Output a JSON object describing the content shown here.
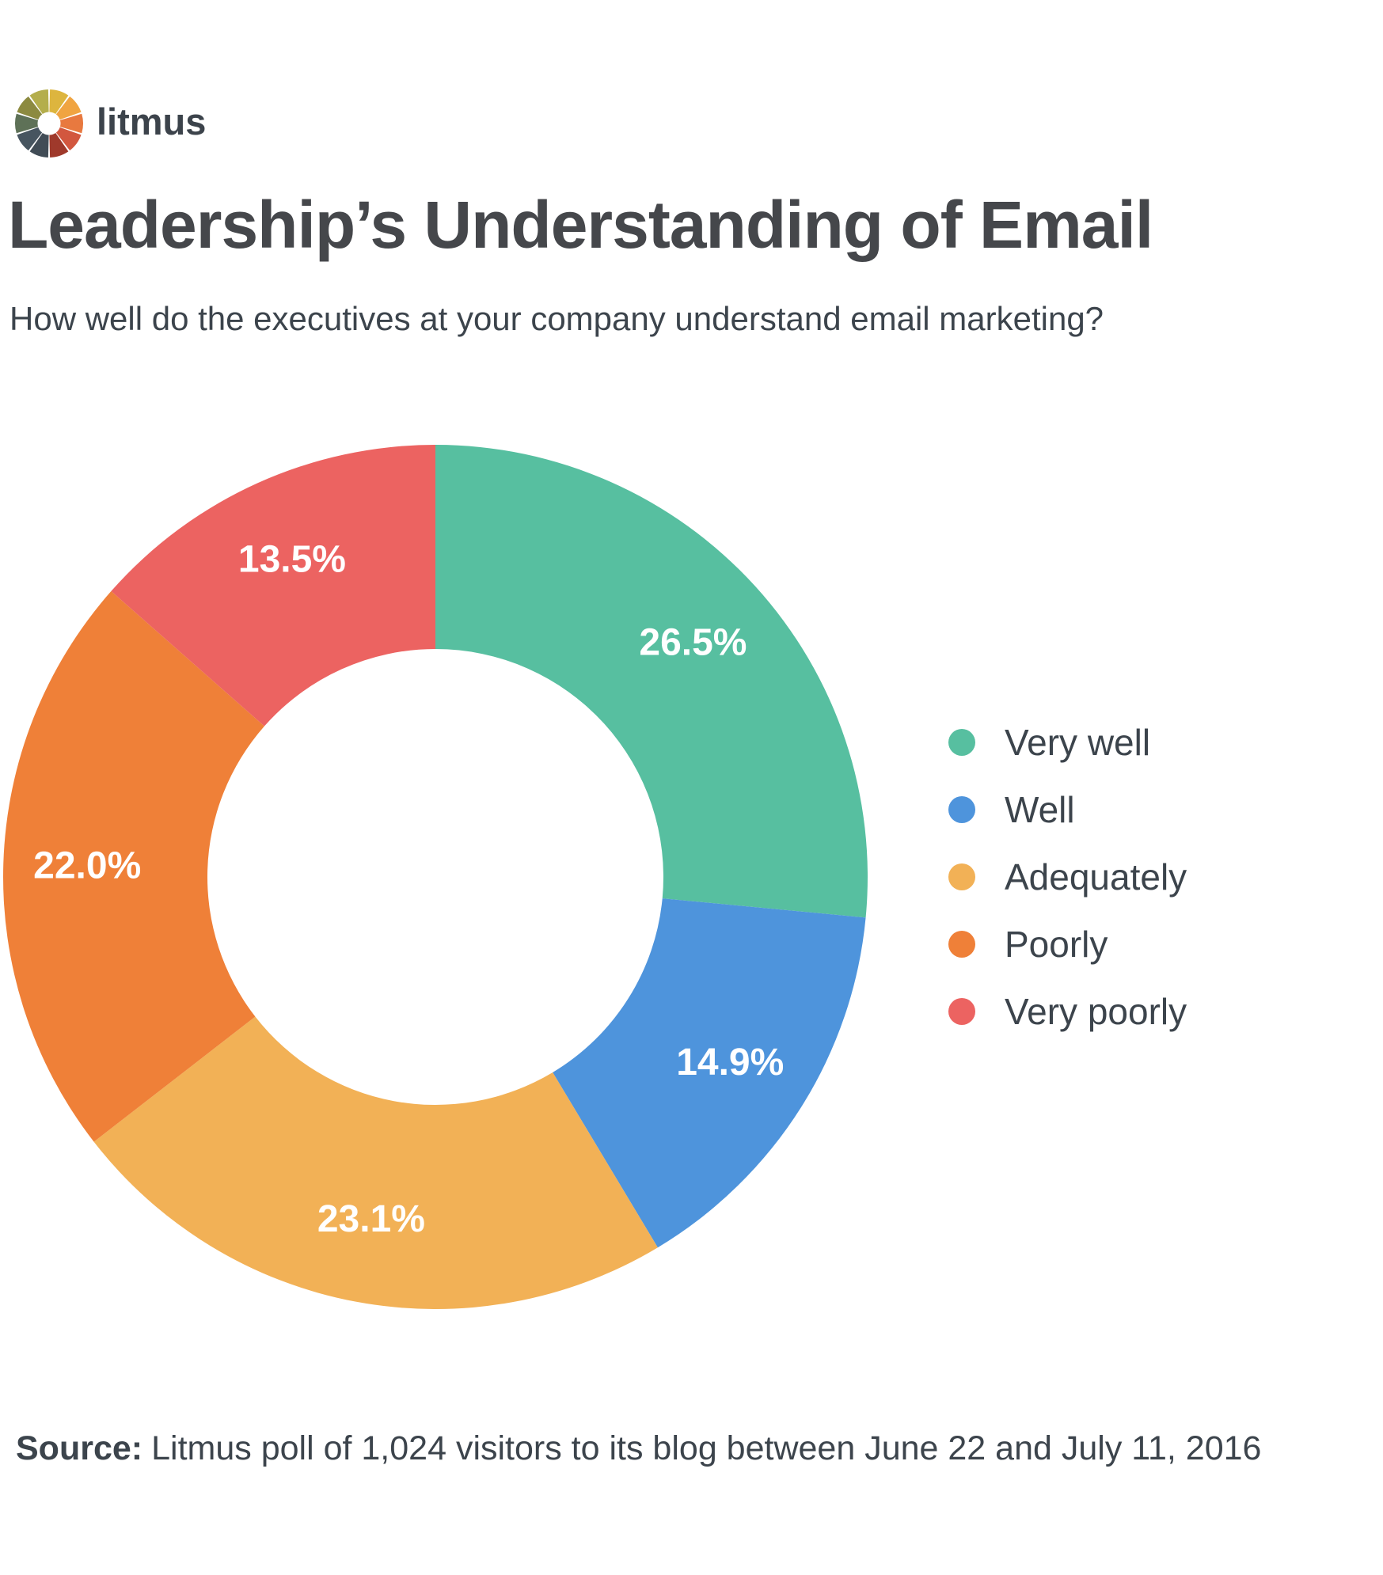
{
  "logo": {
    "text": "litmus",
    "icon": "color-wheel-icon",
    "wheel_colors": [
      "#DDB53E",
      "#F0A441",
      "#E8793F",
      "#D2573F",
      "#9F392B",
      "#414C56",
      "#475560",
      "#5E7157",
      "#8C8A40",
      "#B4AE4C"
    ]
  },
  "source": {
    "label": "Source:",
    "text": "Litmus poll of 1,024 visitors to its blog between June 22 and July 11, 2016"
  },
  "chart_data": {
    "type": "pie",
    "subtype": "donut",
    "title": "Leadership’s Understanding of Email",
    "subtitle": "How well do the executives at your company understand email marketing?",
    "categories": [
      "Very well",
      "Well",
      "Adequately",
      "Poorly",
      "Very poorly"
    ],
    "values": [
      26.5,
      14.9,
      23.1,
      22.0,
      13.5
    ],
    "slice_labels": [
      "26.5%",
      "14.9%",
      "23.1%",
      "22.0%",
      "13.5%"
    ],
    "colors": [
      "#57BFA0",
      "#4E94DC",
      "#F2B156",
      "#EF8038",
      "#EC6361"
    ],
    "start_angle_deg": 0,
    "direction": "clockwise",
    "donut_hole_ratio": 0.53,
    "label_color": "#FFFFFF",
    "legend_position": "right",
    "grid": false
  }
}
